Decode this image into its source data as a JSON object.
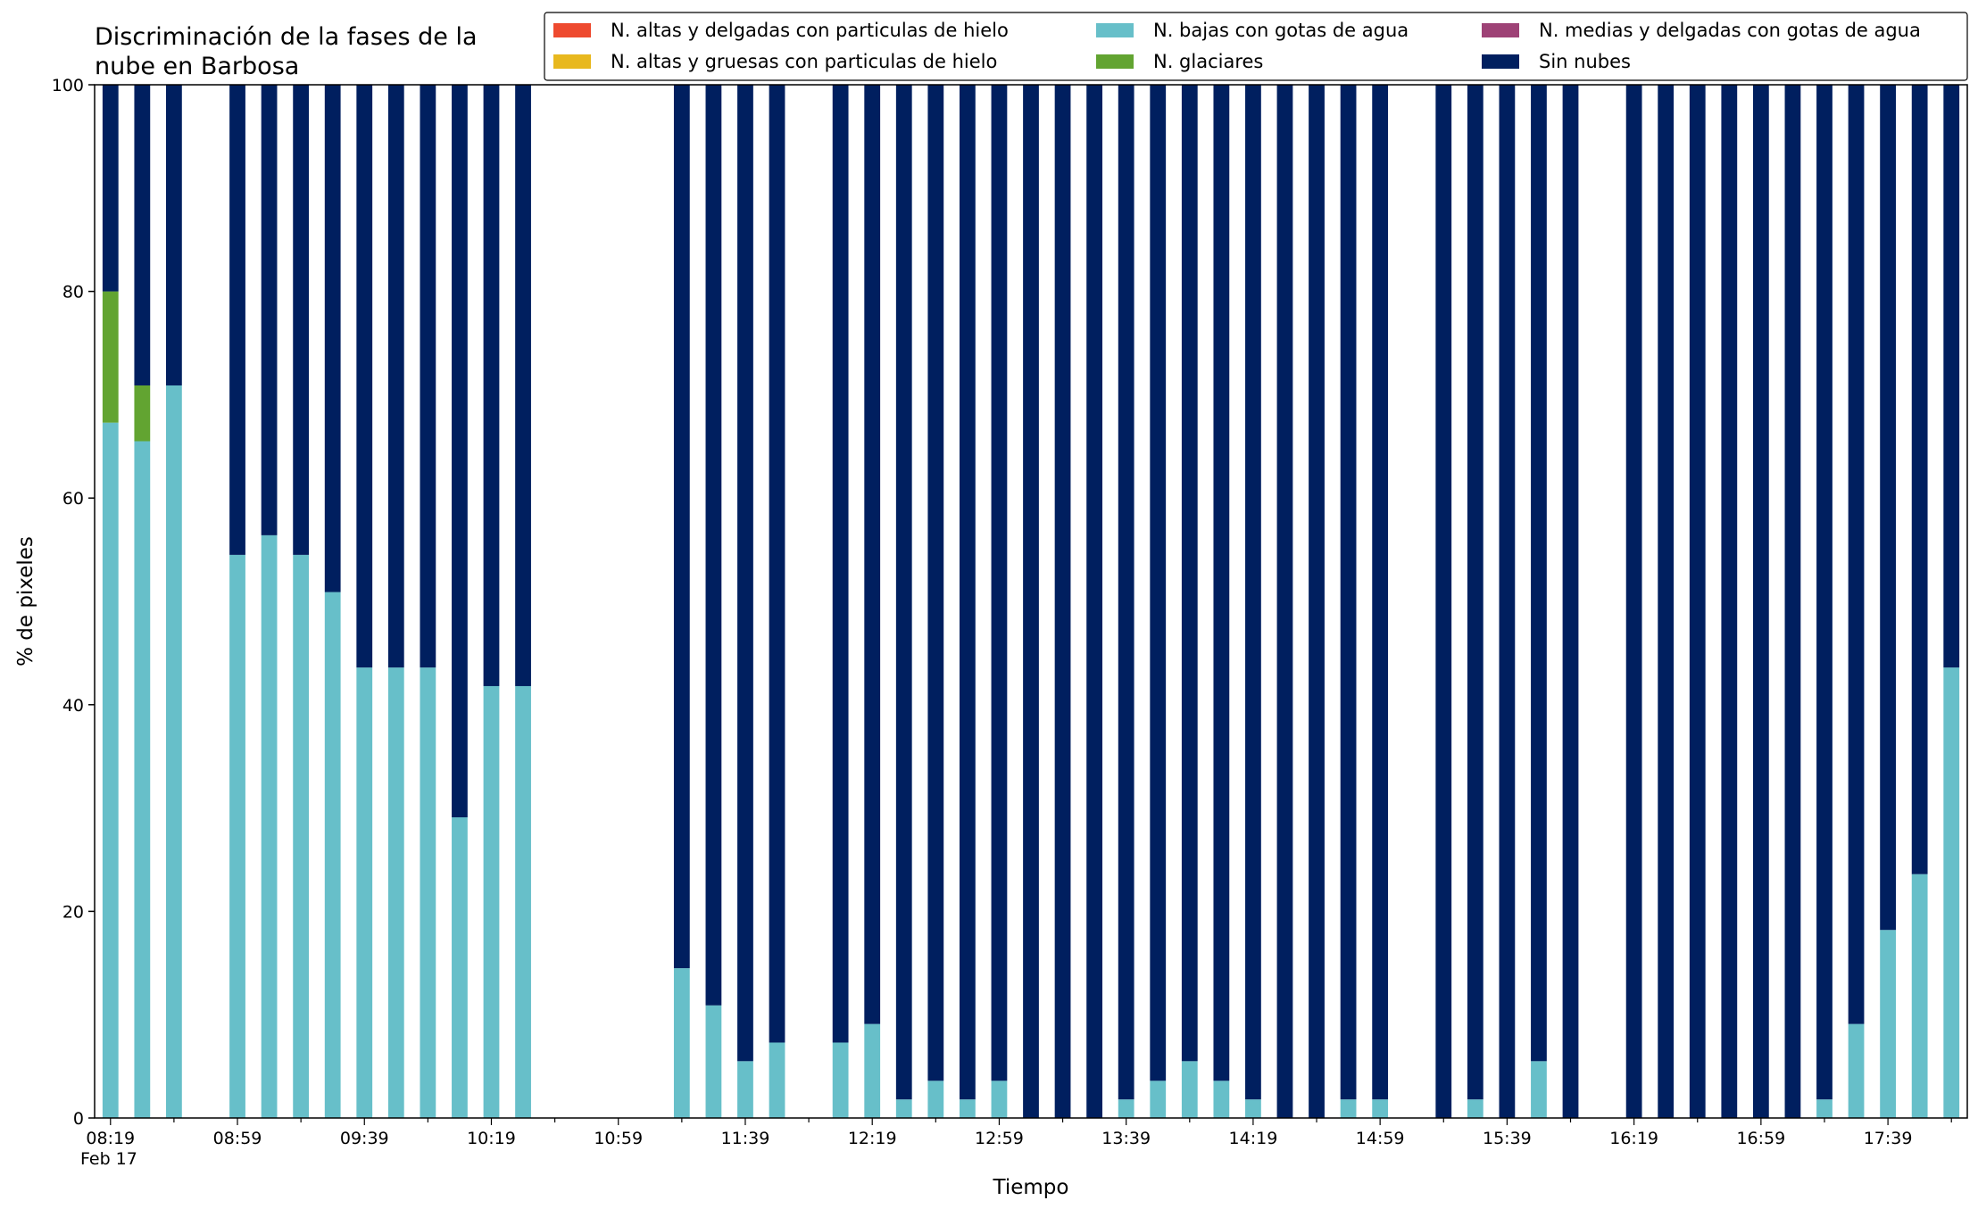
{
  "chart_data": {
    "type": "bar",
    "stacked": true,
    "title": [
      "Discriminación de la fases de la",
      "nube en Barbosa"
    ],
    "xlabel": "Tiempo",
    "ylabel": "% de pixeles",
    "ylim": [
      0,
      100
    ],
    "yticks": [
      0,
      20,
      40,
      60,
      80,
      100
    ],
    "xlim": [
      "08:14",
      "18:04"
    ],
    "xtick_labels": [
      "08:19",
      "08:59",
      "09:39",
      "10:19",
      "10:59",
      "11:39",
      "12:19",
      "12:59",
      "13:39",
      "14:19",
      "14:59",
      "15:39",
      "16:19",
      "16:59",
      "17:39"
    ],
    "xtick_sublabel": "Feb 17",
    "grid": false,
    "legend_position": "top-right",
    "colors": {
      "ice_thin": "#ee4a2f",
      "ice_thick": "#e8b81e",
      "water_low": "#67bfc9",
      "mid_thin": "#9e4276",
      "glacier": "#62a431",
      "clear": "#001f5f"
    },
    "legend": [
      {
        "key": "ice_thin",
        "label": "N. altas y delgadas con particulas de hielo"
      },
      {
        "key": "ice_thick",
        "label": "N. altas y gruesas con particulas de hielo"
      },
      {
        "key": "water_low",
        "label": "N. bajas con gotas de agua"
      },
      {
        "key": "glacier",
        "label": "N. glaciares"
      },
      {
        "key": "mid_thin",
        "label": "N. medias y delgadas con gotas de agua"
      },
      {
        "key": "clear",
        "label": "Sin nubes"
      }
    ],
    "bars": [
      {
        "time": "08:19",
        "water_low": 67.3,
        "glacier": 12.7,
        "clear": 20.0
      },
      {
        "time": "08:29",
        "water_low": 65.5,
        "glacier": 5.4,
        "clear": 29.1
      },
      {
        "time": "08:39",
        "water_low": 70.9,
        "glacier": 0,
        "clear": 29.1
      },
      {
        "time": "08:59",
        "water_low": 54.5,
        "glacier": 0,
        "clear": 45.5
      },
      {
        "time": "09:09",
        "water_low": 56.4,
        "glacier": 0,
        "clear": 43.6
      },
      {
        "time": "09:19",
        "water_low": 54.5,
        "glacier": 0,
        "clear": 45.5
      },
      {
        "time": "09:29",
        "water_low": 50.9,
        "glacier": 0,
        "clear": 49.1
      },
      {
        "time": "09:39",
        "water_low": 43.6,
        "glacier": 0,
        "clear": 56.4
      },
      {
        "time": "09:49",
        "water_low": 43.6,
        "glacier": 0,
        "clear": 56.4
      },
      {
        "time": "09:59",
        "water_low": 43.6,
        "glacier": 0,
        "clear": 56.4
      },
      {
        "time": "10:09",
        "water_low": 29.1,
        "glacier": 0,
        "clear": 70.9
      },
      {
        "time": "10:19",
        "water_low": 41.8,
        "glacier": 0,
        "clear": 58.2
      },
      {
        "time": "10:29",
        "water_low": 41.8,
        "glacier": 0,
        "clear": 58.2
      },
      {
        "time": "11:19",
        "water_low": 14.5,
        "glacier": 0,
        "clear": 85.5
      },
      {
        "time": "11:29",
        "water_low": 10.9,
        "glacier": 0,
        "clear": 89.1
      },
      {
        "time": "11:39",
        "water_low": 5.5,
        "glacier": 0,
        "clear": 94.5
      },
      {
        "time": "11:49",
        "water_low": 7.3,
        "glacier": 0,
        "clear": 92.7
      },
      {
        "time": "12:09",
        "water_low": 7.3,
        "glacier": 0,
        "clear": 92.7
      },
      {
        "time": "12:19",
        "water_low": 9.1,
        "glacier": 0,
        "clear": 90.9
      },
      {
        "time": "12:29",
        "water_low": 1.8,
        "glacier": 0,
        "clear": 98.2
      },
      {
        "time": "12:39",
        "water_low": 3.6,
        "glacier": 0,
        "clear": 96.4
      },
      {
        "time": "12:49",
        "water_low": 1.8,
        "glacier": 0,
        "clear": 98.2
      },
      {
        "time": "12:59",
        "water_low": 3.6,
        "glacier": 0,
        "clear": 96.4
      },
      {
        "time": "13:09",
        "water_low": 0,
        "glacier": 0,
        "clear": 100
      },
      {
        "time": "13:19",
        "water_low": 0,
        "glacier": 0,
        "clear": 100
      },
      {
        "time": "13:29",
        "water_low": 0,
        "glacier": 0,
        "clear": 100
      },
      {
        "time": "13:39",
        "water_low": 1.8,
        "glacier": 0,
        "clear": 98.2
      },
      {
        "time": "13:49",
        "water_low": 3.6,
        "glacier": 0,
        "clear": 96.4
      },
      {
        "time": "13:59",
        "water_low": 5.5,
        "glacier": 0,
        "clear": 94.5
      },
      {
        "time": "14:09",
        "water_low": 3.6,
        "glacier": 0,
        "clear": 96.4
      },
      {
        "time": "14:19",
        "water_low": 1.8,
        "glacier": 0,
        "clear": 98.2
      },
      {
        "time": "14:29",
        "water_low": 0,
        "glacier": 0,
        "clear": 100
      },
      {
        "time": "14:39",
        "water_low": 0,
        "glacier": 0,
        "clear": 100
      },
      {
        "time": "14:49",
        "water_low": 1.8,
        "glacier": 0,
        "clear": 98.2
      },
      {
        "time": "14:59",
        "water_low": 1.8,
        "glacier": 0,
        "clear": 98.2
      },
      {
        "time": "15:19",
        "water_low": 0,
        "glacier": 0,
        "clear": 100
      },
      {
        "time": "15:29",
        "water_low": 1.8,
        "glacier": 0,
        "clear": 98.2
      },
      {
        "time": "15:39",
        "water_low": 0,
        "glacier": 0,
        "clear": 100
      },
      {
        "time": "15:49",
        "water_low": 5.5,
        "glacier": 0,
        "clear": 94.5
      },
      {
        "time": "15:59",
        "water_low": 0,
        "glacier": 0,
        "clear": 100
      },
      {
        "time": "16:19",
        "water_low": 0,
        "glacier": 0,
        "clear": 100
      },
      {
        "time": "16:29",
        "water_low": 0,
        "glacier": 0,
        "clear": 100
      },
      {
        "time": "16:39",
        "water_low": 0,
        "glacier": 0,
        "clear": 100
      },
      {
        "time": "16:49",
        "water_low": 0,
        "glacier": 0,
        "clear": 100
      },
      {
        "time": "16:59",
        "water_low": 0,
        "glacier": 0,
        "clear": 100
      },
      {
        "time": "17:09",
        "water_low": 0,
        "glacier": 0,
        "clear": 100
      },
      {
        "time": "17:19",
        "water_low": 1.8,
        "glacier": 0,
        "clear": 98.2
      },
      {
        "time": "17:29",
        "water_low": 9.1,
        "glacier": 0,
        "clear": 90.9
      },
      {
        "time": "17:39",
        "water_low": 18.2,
        "glacier": 0,
        "clear": 81.8
      },
      {
        "time": "17:49",
        "water_low": 23.6,
        "glacier": 0,
        "clear": 76.4
      },
      {
        "time": "17:59",
        "water_low": 43.6,
        "glacier": 0,
        "clear": 56.4
      }
    ]
  }
}
